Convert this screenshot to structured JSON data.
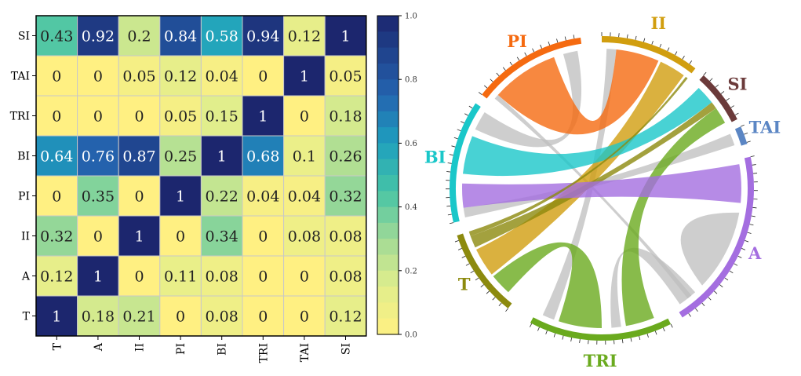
{
  "chart_data": [
    {
      "type": "heatmap",
      "rows": [
        "SI",
        "TAI",
        "TRI",
        "BI",
        "PI",
        "II",
        "A",
        "T"
      ],
      "columns": [
        "T",
        "A",
        "II",
        "PI",
        "BI",
        "TRI",
        "TAI",
        "SI"
      ],
      "values": [
        [
          0.43,
          0.92,
          0.2,
          0.84,
          0.58,
          0.94,
          0.12,
          1
        ],
        [
          0,
          0,
          0.05,
          0.12,
          0.04,
          0,
          1,
          0.05
        ],
        [
          0,
          0,
          0,
          0.05,
          0.15,
          1,
          0,
          0.18
        ],
        [
          0.64,
          0.76,
          0.87,
          0.25,
          1,
          0.68,
          0.1,
          0.26
        ],
        [
          0,
          0.35,
          0,
          1,
          0.22,
          0.04,
          0.04,
          0.32
        ],
        [
          0.32,
          0,
          1,
          0,
          0.34,
          0,
          0.08,
          0.08
        ],
        [
          0.12,
          1,
          0,
          0.11,
          0.08,
          0,
          0,
          0.08
        ],
        [
          1,
          0.18,
          0.21,
          0,
          0.08,
          0,
          0,
          0.12
        ]
      ],
      "value_labels": [
        [
          "0.43",
          "0.92",
          "0.2",
          "0.84",
          "0.58",
          "0.94",
          "0.12",
          "1"
        ],
        [
          "0",
          "0",
          "0.05",
          "0.12",
          "0.04",
          "0",
          "1",
          "0.05"
        ],
        [
          "0",
          "0",
          "0",
          "0.05",
          "0.15",
          "1",
          "0",
          "0.18"
        ],
        [
          "0.64",
          "0.76",
          "0.87",
          "0.25",
          "1",
          "0.68",
          "0.1",
          "0.26"
        ],
        [
          "0",
          "0.35",
          "0",
          "1",
          "0.22",
          "0.04",
          "0.04",
          "0.32"
        ],
        [
          "0.32",
          "0",
          "1",
          "0",
          "0.34",
          "0",
          "0.08",
          "0.08"
        ],
        [
          "0.12",
          "1",
          "0",
          "0.11",
          "0.08",
          "0",
          "0",
          "0.08"
        ],
        [
          "1",
          "0.18",
          "0.21",
          "0",
          "0.08",
          "0",
          "0",
          "0.12"
        ]
      ],
      "colormap": "YlGnBu",
      "vmin": 0,
      "vmax": 1,
      "colorbar_ticks": [
        "0.0",
        "0.2",
        "0.4",
        "0.6",
        "0.8",
        "1.0"
      ]
    },
    {
      "type": "chord",
      "groups": [
        {
          "name": "II",
          "color": "#d19e0f"
        },
        {
          "name": "SI",
          "color": "#6b3a3a"
        },
        {
          "name": "TAI",
          "color": "#5b86c4"
        },
        {
          "name": "A",
          "color": "#a46ee0"
        },
        {
          "name": "TRI",
          "color": "#6aaa1e"
        },
        {
          "name": "T",
          "color": "#8c8a0e"
        },
        {
          "name": "BI",
          "color": "#1ac7c9"
        },
        {
          "name": "PI",
          "color": "#f56a10"
        }
      ]
    }
  ]
}
